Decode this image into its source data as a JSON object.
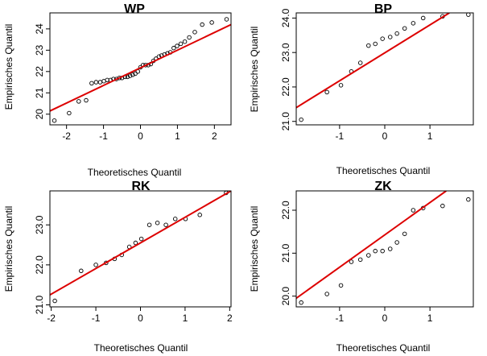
{
  "chart_data": [
    {
      "type": "scatter",
      "title": "WP",
      "xlabel": "Theoretisches Quantil",
      "ylabel": "Empirisches Quantil",
      "xlim": [
        -2.45,
        2.45
      ],
      "ylim": [
        19.5,
        24.75
      ],
      "xticks": [
        -2,
        -1,
        0,
        1,
        2
      ],
      "yticks": [
        20,
        21,
        22,
        23,
        24
      ],
      "x": [
        -2.33,
        -1.93,
        -1.67,
        -1.47,
        -1.32,
        -1.2,
        -1.09,
        -0.99,
        -0.9,
        -0.81,
        -0.73,
        -0.65,
        -0.57,
        -0.5,
        -0.42,
        -0.35,
        -0.28,
        -0.21,
        -0.14,
        -0.07,
        0,
        0.07,
        0.14,
        0.21,
        0.28,
        0.35,
        0.42,
        0.5,
        0.57,
        0.65,
        0.73,
        0.81,
        0.9,
        0.99,
        1.09,
        1.2,
        1.32,
        1.47,
        1.67,
        1.93,
        2.33
      ],
      "y": [
        19.7,
        20.05,
        20.6,
        20.65,
        21.45,
        21.5,
        21.5,
        21.55,
        21.6,
        21.6,
        21.65,
        21.65,
        21.7,
        21.7,
        21.75,
        21.75,
        21.8,
        21.85,
        21.9,
        22.0,
        22.2,
        22.3,
        22.3,
        22.3,
        22.35,
        22.5,
        22.6,
        22.7,
        22.75,
        22.8,
        22.85,
        22.9,
        23.1,
        23.2,
        23.3,
        23.4,
        23.6,
        23.85,
        24.2,
        24.3,
        24.45
      ],
      "reference_line": {
        "x": [
          -2.45,
          2.45
        ],
        "y": [
          20.15,
          24.2
        ]
      }
    },
    {
      "type": "scatter",
      "title": "BP",
      "xlabel": "Theoretisches Quantil",
      "ylabel": "Empirisches Quantil",
      "xlim": [
        -1.96,
        1.96
      ],
      "ylim": [
        20.9,
        24.15
      ],
      "xticks": [
        -1,
        0,
        1
      ],
      "yticks": [
        21.0,
        22.0,
        23.0,
        24.0
      ],
      "x": [
        -1.85,
        -1.28,
        -0.97,
        -0.74,
        -0.54,
        -0.36,
        -0.21,
        -0.05,
        0.12,
        0.27,
        0.44,
        0.63,
        0.85,
        1.28,
        1.85
      ],
      "y": [
        21.05,
        21.85,
        22.05,
        22.45,
        22.7,
        23.2,
        23.25,
        23.4,
        23.45,
        23.55,
        23.7,
        23.85,
        24.0,
        24.05,
        24.1
      ],
      "reference_line": {
        "x": [
          -1.96,
          1.43
        ],
        "y": [
          21.4,
          24.15
        ]
      }
    },
    {
      "type": "scatter",
      "title": "RK",
      "xlabel": "Theoretisches Quantil",
      "ylabel": "Empirisches Quantil",
      "xlim": [
        -2.03,
        2.03
      ],
      "ylim": [
        20.95,
        23.85
      ],
      "xticks": [
        -2,
        -1,
        0,
        1,
        2
      ],
      "yticks": [
        21.0,
        22.0,
        23.0
      ],
      "x": [
        -1.92,
        -1.33,
        -1.0,
        -0.77,
        -0.58,
        -0.42,
        -0.25,
        -0.11,
        0.02,
        0.2,
        0.38,
        0.57,
        0.78,
        1.01,
        1.33,
        1.92
      ],
      "y": [
        21.1,
        21.85,
        22.0,
        22.05,
        22.15,
        22.25,
        22.45,
        22.55,
        22.65,
        23.0,
        23.05,
        23.0,
        23.15,
        23.15,
        23.25,
        23.8
      ],
      "reference_line": {
        "x": [
          -2.03,
          2.03
        ],
        "y": [
          21.25,
          23.85
        ]
      }
    },
    {
      "type": "scatter",
      "title": "ZK",
      "xlabel": "Theoretisches Quantil",
      "ylabel": "Empirisches Quantil",
      "xlim": [
        -1.96,
        1.96
      ],
      "ylim": [
        19.75,
        22.45
      ],
      "xticks": [
        -1,
        0,
        1
      ],
      "yticks": [
        20.0,
        21.0,
        22.0
      ],
      "x": [
        -1.85,
        -1.28,
        -0.97,
        -0.74,
        -0.54,
        -0.36,
        -0.21,
        -0.05,
        0.12,
        0.27,
        0.44,
        0.63,
        0.85,
        1.28,
        1.85
      ],
      "y": [
        19.85,
        20.05,
        20.25,
        20.8,
        20.85,
        20.95,
        21.05,
        21.05,
        21.1,
        21.25,
        21.45,
        22.0,
        22.05,
        22.1,
        22.25
      ],
      "reference_line": {
        "x": [
          -1.96,
          1.36
        ],
        "y": [
          19.95,
          22.45
        ]
      }
    }
  ],
  "colors": {
    "points": "#000000",
    "reference_line": "#dd0000"
  }
}
